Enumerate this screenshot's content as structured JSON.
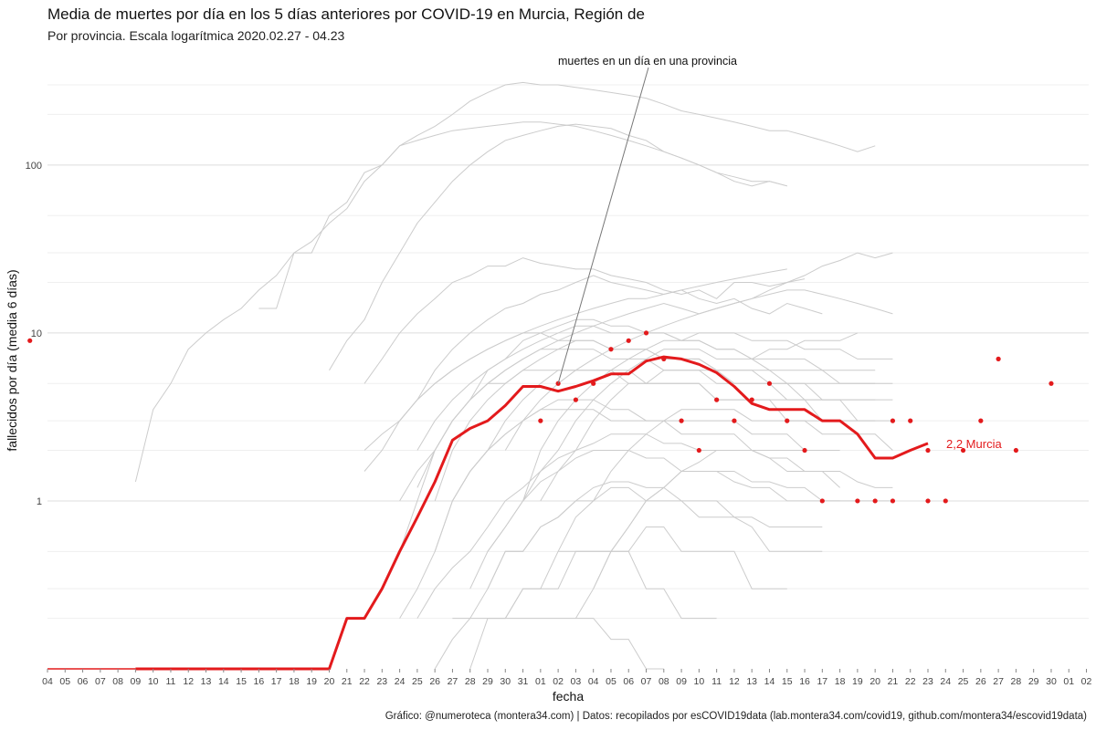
{
  "title": "Media de muertes por día en los 5 días anteriores por COVID-19 en Murcia, Región de",
  "subtitle": "Por provincia. Escala logarítmica  2020.02.27 - 04.23",
  "caption": "Gráfico: @numeroteca (montera34.com) | Datos: recopilados por esCOVID19data (lab.montera34.com/covid19, github.com/montera34/escovid19data)",
  "colors": {
    "highlight": "#e31a1c",
    "context": "#cccccc",
    "grid": "#e6e6e6",
    "annotation_line": "#777777"
  },
  "chart_data": {
    "type": "line",
    "xlabel": "fecha",
    "ylabel": "fallecidos por día (media 6 días)",
    "y_scale": "log",
    "ylim": [
      0.1,
      400
    ],
    "y_ticks": [
      1,
      10,
      100
    ],
    "y_tick_labels": [
      "1",
      "10",
      "100"
    ],
    "x_tick_labels": [
      "04",
      "05",
      "06",
      "07",
      "08",
      "09",
      "10",
      "11",
      "12",
      "13",
      "14",
      "15",
      "16",
      "17",
      "18",
      "19",
      "20",
      "21",
      "22",
      "23",
      "24",
      "25",
      "26",
      "27",
      "28",
      "29",
      "30",
      "31",
      "01",
      "02",
      "03",
      "04",
      "05",
      "06",
      "07",
      "08",
      "09",
      "10",
      "11",
      "12",
      "13",
      "14",
      "15",
      "16",
      "17",
      "18",
      "19",
      "20",
      "21",
      "22",
      "23",
      "24",
      "25",
      "26",
      "27",
      "28",
      "29",
      "30",
      "01",
      "02"
    ],
    "annotation": {
      "text": "muertes en un día en una provincia",
      "x": "02"
    },
    "end_label": "2,2 Murcia",
    "highlight_series": {
      "name": "Murcia",
      "x": [
        "09",
        "10",
        "11",
        "12",
        "13",
        "14",
        "15",
        "16",
        "17",
        "18",
        "19",
        "20",
        "21",
        "22",
        "23",
        "24",
        "25",
        "26",
        "27",
        "28",
        "29",
        "30",
        "31",
        "01",
        "02",
        "03",
        "04",
        "05",
        "06",
        "07",
        "08",
        "09",
        "10",
        "11",
        "12",
        "13",
        "14",
        "15",
        "16",
        "17",
        "18",
        "19",
        "20",
        "21",
        "22",
        "23"
      ],
      "values": [
        0.1,
        0.1,
        0.1,
        0.1,
        0.1,
        0.1,
        0.1,
        0.1,
        0.1,
        0.1,
        0.1,
        0.1,
        0.2,
        0.2,
        0.3,
        0.5,
        0.8,
        1.3,
        2.3,
        2.7,
        3.0,
        3.7,
        4.8,
        4.8,
        4.5,
        4.8,
        5.2,
        5.7,
        5.7,
        6.8,
        7.2,
        7.0,
        6.5,
        5.8,
        4.8,
        3.8,
        3.5,
        3.5,
        3.5,
        3.0,
        3.0,
        2.5,
        1.8,
        1.8,
        2.0,
        2.2
      ]
    },
    "daily_points": {
      "x": [
        "21",
        "23",
        "24",
        "25",
        "26",
        "27",
        "28",
        "30",
        "31",
        "01",
        "02",
        "03",
        "04",
        "05",
        "06",
        "07",
        "08",
        "09",
        "10",
        "11",
        "12",
        "13",
        "14",
        "15",
        "16",
        "17",
        "19",
        "20",
        "21",
        "22",
        "23"
      ],
      "values": [
        1,
        1,
        1,
        2,
        3,
        7,
        2,
        5,
        9,
        3,
        5,
        4,
        5,
        8,
        9,
        10,
        7,
        3,
        2,
        4,
        3,
        4,
        5,
        3,
        2,
        1,
        1,
        1,
        3,
        3,
        2
      ]
    },
    "context_series": [
      {
        "start": 5,
        "values": [
          1.3,
          3.5,
          5,
          8,
          10,
          12,
          14,
          18,
          22,
          30,
          35,
          45,
          55,
          80,
          100,
          130,
          150,
          170,
          200,
          240,
          270,
          300,
          310,
          300,
          300,
          290,
          280,
          270,
          260,
          250,
          230,
          210,
          200,
          190,
          180,
          170,
          160,
          160,
          150,
          140,
          130,
          120,
          130
        ]
      },
      {
        "start": 12,
        "values": [
          14,
          14,
          30,
          30,
          50,
          60,
          90,
          100,
          130,
          140,
          150,
          160,
          165,
          170,
          175,
          180,
          180,
          175,
          170,
          160,
          150,
          140,
          130,
          120,
          110,
          100,
          90,
          80,
          75,
          80,
          75
        ]
      },
      {
        "start": 16,
        "values": [
          6,
          9,
          12,
          20,
          30,
          45,
          60,
          80,
          100,
          120,
          140,
          150,
          160,
          170,
          175,
          170,
          165,
          150,
          140,
          120,
          110,
          100,
          90,
          85,
          80,
          80,
          75
        ]
      },
      {
        "start": 18,
        "values": [
          5,
          7,
          10,
          13,
          16,
          20,
          22,
          25,
          25,
          28,
          26,
          25,
          24,
          24,
          22,
          21,
          20,
          18,
          17,
          18,
          16,
          20,
          20,
          19,
          20,
          21
        ]
      },
      {
        "start": 20,
        "values": [
          3,
          4,
          6,
          8,
          10,
          12,
          14,
          15,
          17,
          18,
          20,
          22,
          20,
          19,
          18,
          17,
          18,
          16,
          15,
          16,
          14,
          13,
          15,
          14,
          13
        ]
      },
      {
        "start": 18,
        "values": [
          2,
          2.5,
          3,
          4,
          5,
          6,
          7,
          8,
          9,
          10,
          11,
          12,
          13,
          14,
          15,
          16,
          16,
          17,
          18,
          19,
          20,
          21,
          22,
          23,
          24
        ]
      },
      {
        "start": 21,
        "values": [
          2,
          3,
          4,
          5,
          6,
          7,
          8,
          9,
          10,
          11,
          11,
          10,
          10,
          10,
          10,
          9,
          9,
          8,
          8,
          7,
          8,
          8,
          9,
          9,
          9,
          10
        ]
      },
      {
        "start": 18,
        "values": [
          1.5,
          2,
          3,
          4,
          5,
          6,
          7,
          8,
          9,
          10,
          10,
          9,
          9,
          9,
          8,
          8,
          8,
          7,
          7,
          7,
          6,
          6,
          6,
          6,
          5,
          5,
          4,
          4,
          3,
          3,
          3
        ]
      },
      {
        "start": 22,
        "values": [
          1,
          2,
          3,
          4,
          5,
          6,
          7,
          8,
          8,
          8,
          7,
          7,
          7,
          6,
          6,
          6,
          5,
          5,
          5,
          5,
          4,
          4,
          4,
          4,
          4,
          4
        ]
      },
      {
        "start": 19,
        "values": [
          0.3,
          0.5,
          1,
          2,
          3,
          4,
          5,
          5,
          6,
          6,
          6,
          6,
          6,
          6,
          5,
          5,
          5,
          5,
          5,
          4,
          4,
          4,
          4,
          4,
          4,
          3,
          3,
          3
        ]
      },
      {
        "start": 23,
        "values": [
          1,
          1.5,
          2,
          3,
          4,
          5,
          6,
          6,
          6,
          6,
          6,
          5,
          5,
          5,
          5,
          4,
          4,
          4,
          4,
          3,
          3,
          3,
          3,
          3,
          3
        ]
      },
      {
        "start": 20,
        "values": [
          0.2,
          0.3,
          0.5,
          1,
          1.5,
          2,
          2.5,
          3,
          3.5,
          4,
          4,
          4,
          3.5,
          3.5,
          3,
          3,
          3,
          3,
          3,
          3,
          2.5,
          2.5,
          2.5,
          2,
          2
        ]
      },
      {
        "start": 22,
        "values": [
          0.5,
          1,
          1.5,
          2,
          2.5,
          3,
          3.5,
          3.5,
          3.5,
          3.5,
          3,
          3,
          3,
          3,
          2.5,
          2.5,
          2.5,
          2.5,
          2,
          2,
          2,
          2,
          2,
          2
        ]
      },
      {
        "start": 21,
        "values": [
          0.2,
          0.3,
          0.4,
          0.5,
          0.7,
          1,
          1.2,
          1.5,
          1.8,
          2,
          2.2,
          2.5,
          2.5,
          2.5,
          2.2,
          2.2,
          2,
          2,
          2,
          2,
          1.8,
          1.5,
          1.5,
          1.5,
          1.2
        ]
      },
      {
        "start": 24,
        "values": [
          0.3,
          0.5,
          0.7,
          1,
          1.3,
          1.5,
          1.8,
          2,
          2,
          2,
          1.8,
          1.8,
          1.5,
          1.5,
          1.5,
          1.3,
          1.2,
          1.2,
          1,
          1,
          1,
          1
        ]
      },
      {
        "start": 23,
        "values": [
          0.2,
          0.2,
          0.3,
          0.5,
          0.5,
          0.7,
          0.8,
          1,
          1.2,
          1.3,
          1.3,
          1.2,
          1.2,
          1,
          1,
          1,
          0.8,
          0.8,
          0.7,
          0.7,
          0.7,
          0.7
        ]
      },
      {
        "start": 25,
        "values": [
          0.3,
          0.5,
          0.5,
          0.7,
          0.8,
          1,
          1,
          1.2,
          1.2,
          1,
          1,
          1,
          0.8,
          0.8,
          0.8,
          0.7,
          0.5,
          0.5,
          0.5,
          0.5
        ]
      },
      {
        "start": 26,
        "values": [
          0.2,
          0.3,
          0.3,
          0.5,
          0.5,
          0.5,
          0.5,
          0.5,
          0.7,
          0.7,
          0.5,
          0.5,
          0.5,
          0.5,
          0.3,
          0.3,
          0.3
        ]
      },
      {
        "start": 24,
        "values": [
          0.1,
          0.2,
          0.2,
          0.3,
          0.3,
          0.3,
          0.5,
          0.5,
          0.5,
          0.5,
          0.3,
          0.3,
          0.2,
          0.2,
          0.2
        ]
      },
      {
        "start": 22,
        "values": [
          0.1,
          0.15,
          0.2,
          0.2,
          0.2,
          0.2,
          0.2,
          0.2,
          0.2,
          0.2,
          0.15,
          0.15,
          0.1,
          0.1
        ]
      },
      {
        "start": 21,
        "values": [
          1.2,
          2,
          3,
          4,
          6,
          7,
          9,
          10,
          11,
          12,
          12,
          11,
          11,
          10,
          10,
          9,
          9,
          8,
          8,
          7,
          7,
          7,
          7,
          6,
          6,
          6,
          6
        ]
      },
      {
        "start": 20,
        "values": [
          1,
          1.5,
          2,
          3,
          4,
          5,
          6,
          7,
          8,
          8,
          9,
          9,
          8,
          8,
          8,
          7,
          7,
          7,
          6,
          6,
          6,
          5,
          5,
          5,
          5,
          5,
          5,
          5
        ]
      },
      {
        "start": 24,
        "values": [
          4,
          5,
          6,
          7,
          8,
          9,
          10,
          11,
          12,
          13,
          14,
          15,
          14,
          13,
          14,
          15,
          16,
          18,
          20,
          22,
          25,
          27,
          30,
          28,
          30
        ]
      },
      {
        "start": 26,
        "values": [
          2,
          3,
          4,
          5,
          6,
          7,
          8,
          9,
          10,
          11,
          12,
          13,
          14,
          15,
          16,
          17,
          18,
          18,
          17,
          16,
          15,
          14,
          13
        ]
      },
      {
        "start": 27,
        "values": [
          1,
          2,
          3,
          4,
          5,
          6,
          7,
          8,
          9,
          9,
          10,
          10,
          10,
          9,
          9,
          9,
          8,
          8,
          8,
          7,
          7,
          7
        ]
      },
      {
        "start": 25,
        "values": [
          0.5,
          0.7,
          1,
          1.5,
          2,
          3,
          4,
          5,
          6,
          7,
          8,
          8,
          8,
          7,
          7,
          7,
          6,
          6,
          6,
          6,
          5,
          5,
          5,
          5
        ]
      },
      {
        "start": 28,
        "values": [
          1,
          1.5,
          2,
          3,
          4,
          5,
          5,
          6,
          6,
          6,
          6,
          5,
          5,
          5,
          5,
          4,
          4,
          4,
          4,
          4,
          4
        ]
      },
      {
        "start": 29,
        "values": [
          0.5,
          0.8,
          1,
          1.5,
          2,
          2.5,
          3,
          3.5,
          3.5,
          3.5,
          3.5,
          3,
          3,
          3,
          3,
          2.5,
          2.5,
          2.5,
          2.5,
          2
        ]
      },
      {
        "start": 30,
        "values": [
          0.2,
          0.3,
          0.5,
          0.7,
          1,
          1.2,
          1.5,
          1.5,
          1.5,
          1.5,
          1.3,
          1.3,
          1.2,
          1.2,
          1,
          1,
          1,
          1,
          1
        ]
      },
      {
        "start": 31,
        "values": [
          0.3,
          0.5,
          0.7,
          1,
          1.2,
          1.5,
          1.7,
          2,
          2,
          2,
          1.8,
          1.8,
          1.5,
          1.5,
          1.5,
          1.3,
          1.2,
          1.2
        ]
      }
    ]
  }
}
